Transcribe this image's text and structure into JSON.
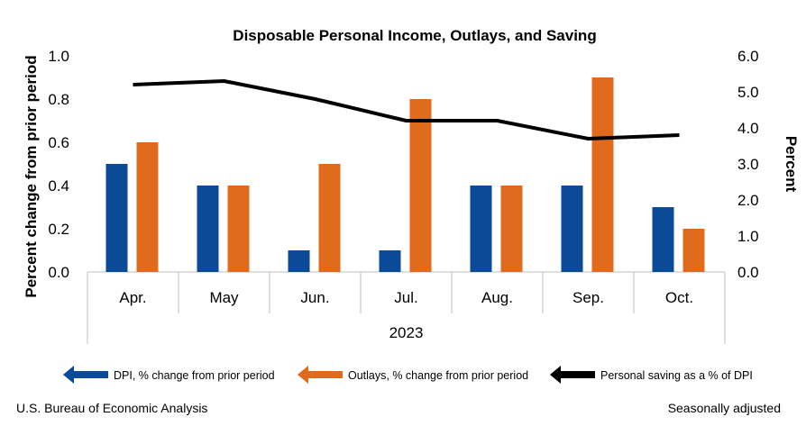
{
  "chart_data": {
    "type": "bar",
    "title": "Disposable Personal Income, Outlays, and Saving",
    "categories": [
      "Apr.",
      "May",
      "Jun.",
      "Jul.",
      "Aug.",
      "Sep.",
      "Oct."
    ],
    "group_label": "2023",
    "ylabel": "Percent change from prior period",
    "y2label": "Percent",
    "ylim": [
      0,
      1.0
    ],
    "y2lim": [
      0,
      6.0
    ],
    "yticks": [
      "0.0",
      "0.2",
      "0.4",
      "0.6",
      "0.8",
      "1.0"
    ],
    "y2ticks": [
      "0.0",
      "1.0",
      "2.0",
      "3.0",
      "4.0",
      "5.0",
      "6.0"
    ],
    "grid": false,
    "legend_position": "bottom",
    "series": [
      {
        "name": "DPI, % change from prior period",
        "type": "bar",
        "axis": "left",
        "color": "#0b4a97",
        "values": [
          0.5,
          0.4,
          0.1,
          0.1,
          0.4,
          0.4,
          0.3
        ]
      },
      {
        "name": "Outlays, % change from prior period",
        "type": "bar",
        "axis": "left",
        "color": "#e06b1d",
        "values": [
          0.6,
          0.4,
          0.5,
          0.8,
          0.4,
          0.9,
          0.2
        ]
      },
      {
        "name": "Personal saving as a % of DPI",
        "type": "line",
        "axis": "right",
        "color": "#000000",
        "values": [
          5.2,
          5.3,
          4.8,
          4.2,
          4.2,
          3.7,
          3.8
        ]
      }
    ]
  },
  "footer": {
    "source": "U.S. Bureau of Economic Analysis",
    "adjustment": "Seasonally adjusted"
  }
}
